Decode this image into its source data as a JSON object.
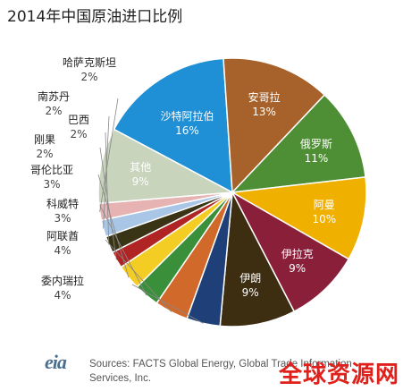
{
  "chart_data": {
    "type": "pie",
    "title": "2014年中国原油进口比例",
    "categories": [
      "沙特阿拉伯",
      "安哥拉",
      "俄罗斯",
      "阿曼",
      "伊拉克",
      "伊朗",
      "委内瑞拉",
      "阿联酋",
      "科威特",
      "哥伦比亚",
      "刚果",
      "巴西",
      "南苏丹",
      "哈萨克斯坦",
      "其他"
    ],
    "values": [
      16,
      13,
      11,
      10,
      9,
      9,
      4,
      4,
      3,
      3,
      2,
      2,
      2,
      2,
      9
    ],
    "value_labels": [
      "16%",
      "13%",
      "11%",
      "10%",
      "9%",
      "9%",
      "4%",
      "4%",
      "3%",
      "3%",
      "2%",
      "2%",
      "2%",
      "2%",
      "9%"
    ],
    "colors": [
      "#1f8fd6",
      "#a6622a",
      "#4e8e34",
      "#f0b000",
      "#8a1f3a",
      "#3d2e12",
      "#1f3f78",
      "#d1692a",
      "#3a8f3a",
      "#f3cd24",
      "#b02424",
      "#3a3416",
      "#a9c6e6",
      "#e6b2b2",
      "#c8d4bc"
    ],
    "label_placement": [
      "inside",
      "inside",
      "inside",
      "inside",
      "inside",
      "inside",
      "outside",
      "outside",
      "outside",
      "outside",
      "outside",
      "outside",
      "outside",
      "outside",
      "inside"
    ],
    "legend": "none"
  },
  "source": {
    "logo_text": "eia",
    "text_line1": "Sources: FACTS Global Energy, Global Trade Information",
    "text_line2": "Services, Inc."
  },
  "watermark": "全球资源网"
}
